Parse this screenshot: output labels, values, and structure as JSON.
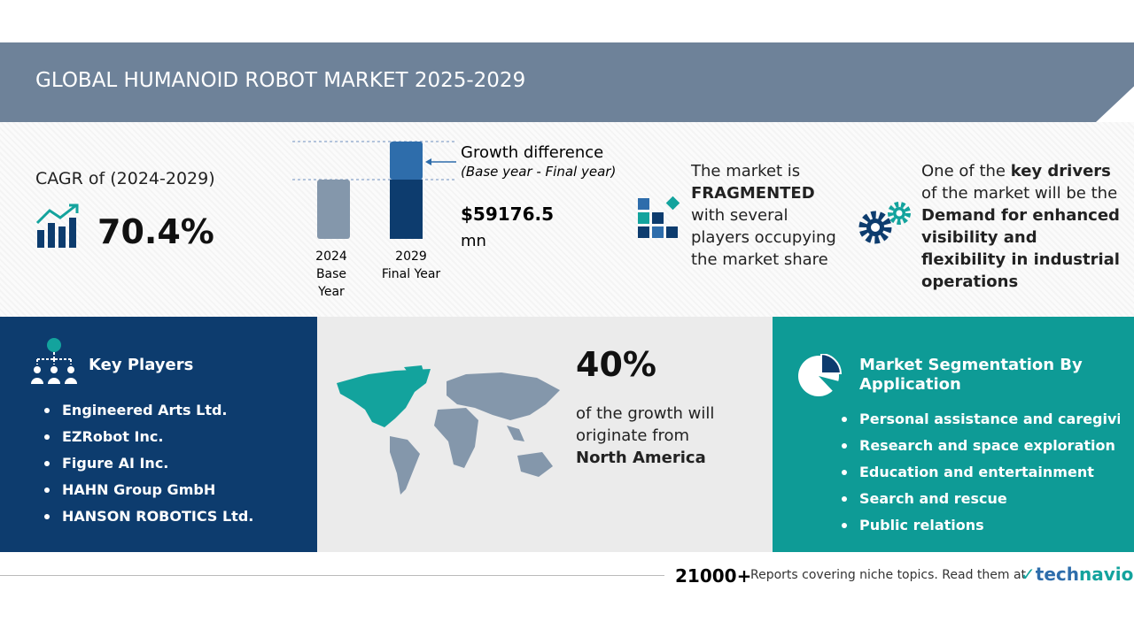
{
  "header": {
    "title": "GLOBAL HUMANOID ROBOT MARKET 2025-2029"
  },
  "cagr": {
    "label": "CAGR of (2024-2029)",
    "value": "70.4%"
  },
  "growth": {
    "bars": [
      {
        "year": "2024",
        "label": "Base Year"
      },
      {
        "year": "2029",
        "label": "Final Year"
      }
    ],
    "title": "Growth difference",
    "subtitle": "(Base year - Final year)",
    "value": "$59176.5",
    "unit": "mn"
  },
  "market": {
    "intro": "The market is",
    "emphasis": "FRAGMENTED",
    "rest": "with several players occupying the market share"
  },
  "drivers": {
    "intro": "One of the",
    "emphasis": "key drivers",
    "continuation": "of the market will be the",
    "driver": "Demand for enhanced visibility and flexibility in industrial operations"
  },
  "key_players": {
    "title": "Key Players",
    "items": [
      "Engineered Arts Ltd.",
      "EZRobot Inc.",
      "Figure AI Inc.",
      "HAHN Group GmbH",
      "HANSON ROBOTICS Ltd."
    ]
  },
  "region": {
    "share": "40%",
    "text": "of the growth will originate from",
    "name": "North America"
  },
  "segmentation": {
    "title": "Market Segmentation By Application",
    "items": [
      "Personal assistance and caregivi...",
      "Research and space exploration",
      "Education and entertainment",
      "Search and rescue",
      "Public relations"
    ]
  },
  "footer": {
    "count": "21000+",
    "text": "Reports covering niche topics. Read them at",
    "brand_a": "tech",
    "brand_b": "navio"
  }
}
